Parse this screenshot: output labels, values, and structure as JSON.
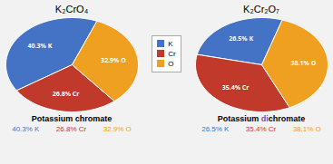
{
  "chart_data": [
    {
      "type": "pie",
      "title": "K₂CrO₄",
      "subtitle": "Potassium chromate",
      "categories": [
        "K",
        "Cr",
        "O"
      ],
      "values": [
        40.3,
        26.8,
        32.9
      ],
      "value_labels": [
        "40.3% K",
        "26.8% Cr",
        "32.9% O"
      ],
      "colors": [
        "#4472C4",
        "#C0392B",
        "#F0A020"
      ],
      "data_labels": true,
      "legend": "center",
      "annotations": [
        "40.3% K",
        "26.8% Cr",
        "32.9% O"
      ]
    },
    {
      "type": "pie",
      "title": "K₂Cr₂O₇",
      "subtitle": [
        {
          "text": "Potassium ",
          "color": "black"
        },
        {
          "text": "di",
          "color": "#7B52AB"
        },
        {
          "text": "chromate",
          "color": "black"
        }
      ],
      "categories": [
        "K",
        "Cr",
        "O"
      ],
      "values": [
        26.5,
        35.4,
        38.1
      ],
      "value_labels": [
        "26.5% K",
        "35.4% Cr",
        "38.1% O"
      ],
      "colors": [
        "#4472C4",
        "#C0392B",
        "#F0A020"
      ],
      "data_labels": true,
      "annotations": [
        "26.5% K",
        "35.4% Cr",
        "38.1% O"
      ]
    }
  ]
}
